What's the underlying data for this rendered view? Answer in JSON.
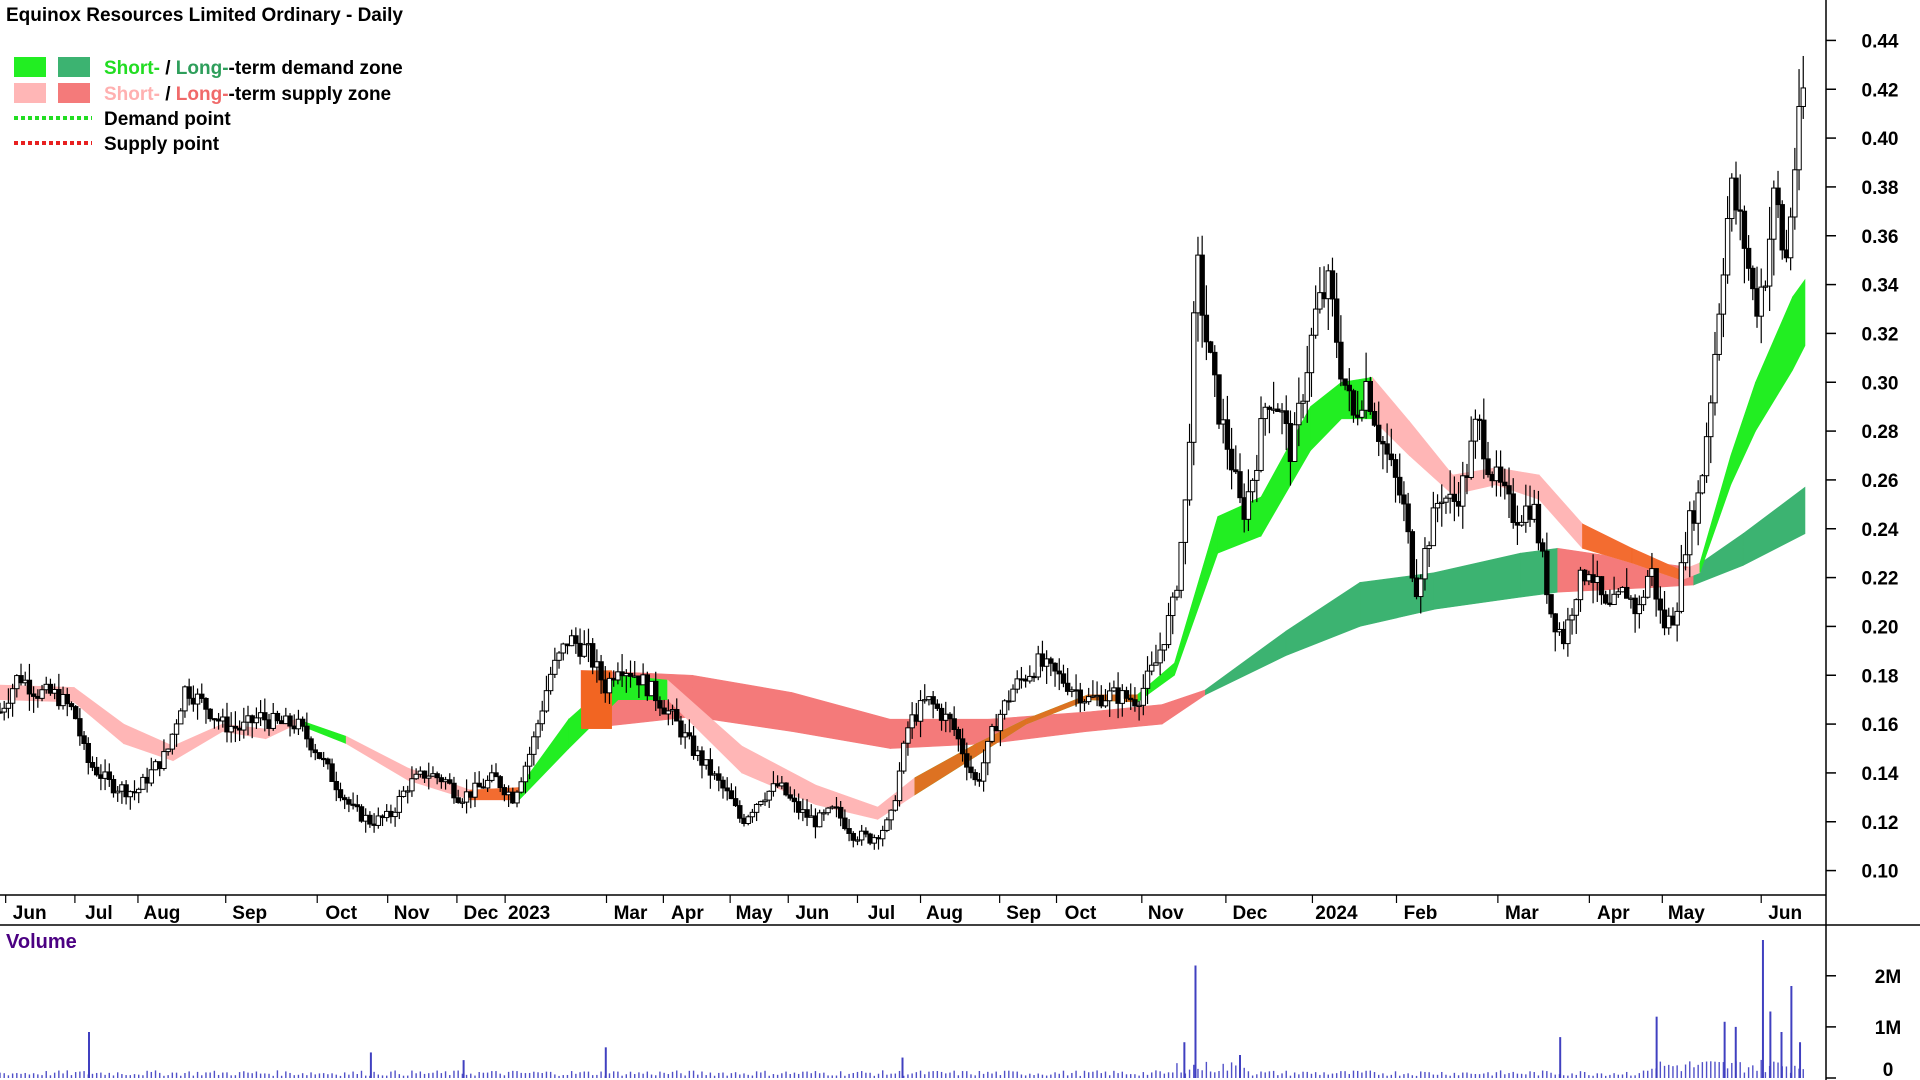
{
  "chart_data": {
    "type": "candlestick",
    "title": "Equinox Resources Limited Ordinary - Daily",
    "price_axis": {
      "ticks": [
        "0.44",
        "0.42",
        "0.40",
        "0.38",
        "0.36",
        "0.34",
        "0.32",
        "0.30",
        "0.28",
        "0.26",
        "0.24",
        "0.22",
        "0.20",
        "0.18",
        "0.16",
        "0.14",
        "0.12",
        "0.10"
      ],
      "range": [
        0.09,
        0.45
      ]
    },
    "time_axis": {
      "labels": [
        "Jun",
        "Jul",
        "Aug",
        "Sep",
        "Oct",
        "Nov",
        "Dec",
        "2023",
        "Mar",
        "Apr",
        "May",
        "Jun",
        "Jul",
        "Aug",
        "Sep",
        "Oct",
        "Nov",
        "Dec",
        "2024",
        "Feb",
        "Mar",
        "Apr",
        "May",
        "Jun"
      ],
      "label_days": [
        24,
        80,
        131,
        202,
        276,
        333,
        389,
        428,
        510,
        556,
        610,
        657,
        713,
        764,
        828,
        874,
        943,
        1011,
        1081,
        1149,
        1231,
        1305,
        1364,
        1444
      ],
      "range_days": [
        0,
        1477
      ]
    },
    "legend": [
      {
        "label_short": "Short-",
        "sep": " / ",
        "label_long": "Long-",
        "text": "-term demand zone",
        "short_color": "#22ee22",
        "long_color": "#3cb371",
        "text_color_short": "#22dd22",
        "text_color_long": "#2e9e5b"
      },
      {
        "label_short": "Short-",
        "sep": " / ",
        "label_long": "Long-",
        "text": "-term supply zone",
        "short_color": "#ffb6b6",
        "long_color": "#f47a7a",
        "text_color_short": "#ffb0b0",
        "text_color_long": "#f06a6a"
      },
      {
        "label": "Demand point",
        "color": "#22dd22"
      },
      {
        "label": "Supply point",
        "color": "#e82020"
      }
    ],
    "short_zone": [
      {
        "d": 0,
        "lo": 0.17,
        "hi": 0.176,
        "state": "supply"
      },
      {
        "d": 60,
        "lo": 0.169,
        "hi": 0.175,
        "state": "supply"
      },
      {
        "d": 100,
        "lo": 0.152,
        "hi": 0.16,
        "state": "supply"
      },
      {
        "d": 140,
        "lo": 0.145,
        "hi": 0.151,
        "state": "supply"
      },
      {
        "d": 180,
        "lo": 0.157,
        "hi": 0.16,
        "state": "supply"
      },
      {
        "d": 215,
        "lo": 0.154,
        "hi": 0.158,
        "state": "supply"
      },
      {
        "d": 240,
        "lo": 0.16,
        "hi": 0.162,
        "state": "demand"
      },
      {
        "d": 280,
        "lo": 0.152,
        "hi": 0.155,
        "state": "supply"
      },
      {
        "d": 330,
        "lo": 0.137,
        "hi": 0.142,
        "state": "supply"
      },
      {
        "d": 380,
        "lo": 0.129,
        "hi": 0.133,
        "state": "supply"
      },
      {
        "d": 420,
        "lo": 0.129,
        "hi": 0.134,
        "state": "demand"
      },
      {
        "d": 460,
        "lo": 0.15,
        "hi": 0.162,
        "state": "demand"
      },
      {
        "d": 500,
        "lo": 0.17,
        "hi": 0.18,
        "state": "demand"
      },
      {
        "d": 540,
        "lo": 0.17,
        "hi": 0.178,
        "state": "supply"
      },
      {
        "d": 600,
        "lo": 0.14,
        "hi": 0.151,
        "state": "supply"
      },
      {
        "d": 660,
        "lo": 0.127,
        "hi": 0.135,
        "state": "supply"
      },
      {
        "d": 710,
        "lo": 0.121,
        "hi": 0.126,
        "state": "supply"
      },
      {
        "d": 740,
        "lo": 0.131,
        "hi": 0.138,
        "state": "demand"
      },
      {
        "d": 790,
        "lo": 0.147,
        "hi": 0.152,
        "state": "demand"
      },
      {
        "d": 830,
        "lo": 0.16,
        "hi": 0.162,
        "state": "demand"
      },
      {
        "d": 880,
        "lo": 0.17,
        "hi": 0.172,
        "state": "demand"
      },
      {
        "d": 920,
        "lo": 0.169,
        "hi": 0.172,
        "state": "demand"
      },
      {
        "d": 950,
        "lo": 0.18,
        "hi": 0.185,
        "state": "demand"
      },
      {
        "d": 985,
        "lo": 0.23,
        "hi": 0.245,
        "state": "demand"
      },
      {
        "d": 1020,
        "lo": 0.237,
        "hi": 0.253,
        "state": "demand"
      },
      {
        "d": 1060,
        "lo": 0.272,
        "hi": 0.29,
        "state": "demand"
      },
      {
        "d": 1085,
        "lo": 0.285,
        "hi": 0.3,
        "state": "demand"
      },
      {
        "d": 1110,
        "lo": 0.285,
        "hi": 0.302,
        "state": "supply"
      },
      {
        "d": 1140,
        "lo": 0.27,
        "hi": 0.284,
        "state": "supply"
      },
      {
        "d": 1175,
        "lo": 0.254,
        "hi": 0.262,
        "state": "supply"
      },
      {
        "d": 1210,
        "lo": 0.258,
        "hi": 0.265,
        "state": "supply"
      },
      {
        "d": 1245,
        "lo": 0.252,
        "hi": 0.262,
        "state": "supply"
      },
      {
        "d": 1280,
        "lo": 0.232,
        "hi": 0.242,
        "state": "supply"
      },
      {
        "d": 1320,
        "lo": 0.226,
        "hi": 0.232,
        "state": "supply"
      },
      {
        "d": 1360,
        "lo": 0.219,
        "hi": 0.223,
        "state": "supply"
      },
      {
        "d": 1375,
        "lo": 0.222,
        "hi": 0.226,
        "state": "demand"
      },
      {
        "d": 1400,
        "lo": 0.258,
        "hi": 0.27,
        "state": "demand"
      },
      {
        "d": 1420,
        "lo": 0.28,
        "hi": 0.3,
        "state": "demand"
      },
      {
        "d": 1450,
        "lo": 0.305,
        "hi": 0.335,
        "state": "demand"
      },
      {
        "d": 1460,
        "lo": 0.315,
        "hi": 0.342,
        "state": "demand"
      }
    ],
    "long_zone": [
      {
        "d": 470,
        "lo": 0.158,
        "hi": 0.182,
        "state": "supply"
      },
      {
        "d": 560,
        "lo": 0.163,
        "hi": 0.18,
        "state": "supply"
      },
      {
        "d": 640,
        "lo": 0.157,
        "hi": 0.173,
        "state": "supply"
      },
      {
        "d": 720,
        "lo": 0.15,
        "hi": 0.162,
        "state": "supply"
      },
      {
        "d": 800,
        "lo": 0.152,
        "hi": 0.162,
        "state": "supply"
      },
      {
        "d": 880,
        "lo": 0.157,
        "hi": 0.165,
        "state": "supply"
      },
      {
        "d": 940,
        "lo": 0.16,
        "hi": 0.168,
        "state": "supply"
      },
      {
        "d": 975,
        "lo": 0.172,
        "hi": 0.174,
        "state": "demand"
      },
      {
        "d": 1040,
        "lo": 0.188,
        "hi": 0.198,
        "state": "demand"
      },
      {
        "d": 1100,
        "lo": 0.2,
        "hi": 0.218,
        "state": "demand"
      },
      {
        "d": 1160,
        "lo": 0.207,
        "hi": 0.222,
        "state": "demand"
      },
      {
        "d": 1230,
        "lo": 0.212,
        "hi": 0.23,
        "state": "demand"
      },
      {
        "d": 1260,
        "lo": 0.214,
        "hi": 0.232,
        "state": "supply"
      },
      {
        "d": 1340,
        "lo": 0.216,
        "hi": 0.226,
        "state": "supply"
      },
      {
        "d": 1370,
        "lo": 0.217,
        "hi": 0.224,
        "state": "demand"
      },
      {
        "d": 1410,
        "lo": 0.225,
        "hi": 0.238,
        "state": "demand"
      },
      {
        "d": 1460,
        "lo": 0.238,
        "hi": 0.257,
        "state": "demand"
      }
    ],
    "price_anchors": [
      [
        0,
        0.165
      ],
      [
        15,
        0.18
      ],
      [
        30,
        0.173
      ],
      [
        45,
        0.172
      ],
      [
        60,
        0.165
      ],
      [
        70,
        0.145
      ],
      [
        90,
        0.135
      ],
      [
        110,
        0.132
      ],
      [
        125,
        0.142
      ],
      [
        135,
        0.148
      ],
      [
        150,
        0.175
      ],
      [
        165,
        0.168
      ],
      [
        180,
        0.16
      ],
      [
        195,
        0.158
      ],
      [
        210,
        0.163
      ],
      [
        225,
        0.16
      ],
      [
        240,
        0.16
      ],
      [
        255,
        0.15
      ],
      [
        270,
        0.137
      ],
      [
        285,
        0.125
      ],
      [
        300,
        0.12
      ],
      [
        315,
        0.122
      ],
      [
        330,
        0.135
      ],
      [
        345,
        0.14
      ],
      [
        360,
        0.137
      ],
      [
        372,
        0.13
      ],
      [
        385,
        0.133
      ],
      [
        400,
        0.138
      ],
      [
        415,
        0.13
      ],
      [
        430,
        0.15
      ],
      [
        445,
        0.18
      ],
      [
        460,
        0.195
      ],
      [
        475,
        0.19
      ],
      [
        490,
        0.175
      ],
      [
        500,
        0.185
      ],
      [
        515,
        0.18
      ],
      [
        530,
        0.172
      ],
      [
        545,
        0.162
      ],
      [
        560,
        0.15
      ],
      [
        575,
        0.14
      ],
      [
        590,
        0.13
      ],
      [
        600,
        0.12
      ],
      [
        615,
        0.13
      ],
      [
        630,
        0.135
      ],
      [
        645,
        0.125
      ],
      [
        660,
        0.12
      ],
      [
        675,
        0.125
      ],
      [
        690,
        0.115
      ],
      [
        705,
        0.113
      ],
      [
        720,
        0.12
      ],
      [
        735,
        0.16
      ],
      [
        750,
        0.17
      ],
      [
        770,
        0.16
      ],
      [
        790,
        0.135
      ],
      [
        805,
        0.16
      ],
      [
        820,
        0.175
      ],
      [
        840,
        0.185
      ],
      [
        860,
        0.178
      ],
      [
        880,
        0.17
      ],
      [
        900,
        0.172
      ],
      [
        920,
        0.17
      ],
      [
        935,
        0.185
      ],
      [
        950,
        0.21
      ],
      [
        960,
        0.255
      ],
      [
        968,
        0.35
      ],
      [
        975,
        0.32
      ],
      [
        985,
        0.29
      ],
      [
        995,
        0.27
      ],
      [
        1005,
        0.245
      ],
      [
        1015,
        0.265
      ],
      [
        1025,
        0.295
      ],
      [
        1035,
        0.29
      ],
      [
        1045,
        0.27
      ],
      [
        1055,
        0.3
      ],
      [
        1065,
        0.33
      ],
      [
        1075,
        0.34
      ],
      [
        1085,
        0.305
      ],
      [
        1095,
        0.285
      ],
      [
        1105,
        0.3
      ],
      [
        1115,
        0.28
      ],
      [
        1125,
        0.265
      ],
      [
        1135,
        0.25
      ],
      [
        1145,
        0.215
      ],
      [
        1155,
        0.235
      ],
      [
        1165,
        0.255
      ],
      [
        1175,
        0.25
      ],
      [
        1185,
        0.26
      ],
      [
        1195,
        0.285
      ],
      [
        1205,
        0.265
      ],
      [
        1215,
        0.255
      ],
      [
        1225,
        0.245
      ],
      [
        1240,
        0.25
      ],
      [
        1255,
        0.205
      ],
      [
        1265,
        0.195
      ],
      [
        1275,
        0.215
      ],
      [
        1285,
        0.225
      ],
      [
        1300,
        0.205
      ],
      [
        1315,
        0.215
      ],
      [
        1325,
        0.205
      ],
      [
        1335,
        0.225
      ],
      [
        1345,
        0.2
      ],
      [
        1355,
        0.205
      ],
      [
        1365,
        0.24
      ],
      [
        1375,
        0.255
      ],
      [
        1385,
        0.3
      ],
      [
        1392,
        0.34
      ],
      [
        1400,
        0.38
      ],
      [
        1410,
        0.36
      ],
      [
        1420,
        0.33
      ],
      [
        1428,
        0.345
      ],
      [
        1436,
        0.38
      ],
      [
        1444,
        0.345
      ],
      [
        1452,
        0.39
      ],
      [
        1460,
        0.425
      ]
    ],
    "volume_axis": {
      "ticks": [
        "2M",
        "1M",
        "0"
      ],
      "range": [
        0,
        2700000
      ],
      "label": "Volume"
    },
    "volume_spikes": [
      [
        72,
        900000
      ],
      [
        300,
        500000
      ],
      [
        375,
        350000
      ],
      [
        490,
        600000
      ],
      [
        730,
        400000
      ],
      [
        967,
        2200000
      ],
      [
        958,
        700000
      ],
      [
        1003,
        450000
      ],
      [
        1262,
        800000
      ],
      [
        1340,
        1200000
      ],
      [
        1395,
        1100000
      ],
      [
        1404,
        1000000
      ],
      [
        1426,
        2700000
      ],
      [
        1432,
        1300000
      ],
      [
        1441,
        900000
      ],
      [
        1449,
        1800000
      ],
      [
        1456,
        700000
      ]
    ]
  }
}
